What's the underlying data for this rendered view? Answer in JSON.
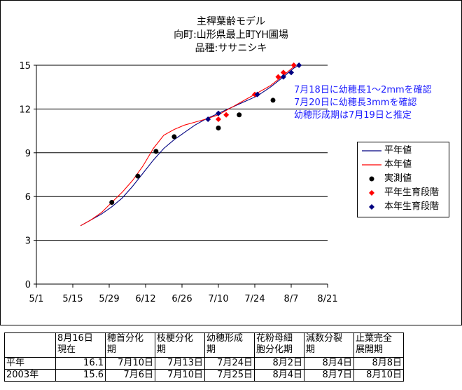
{
  "chart_data": {
    "type": "line",
    "title": [
      "主稈葉齢モデル",
      "向町:山形県最上町YH圃場",
      "品種:ササニシキ"
    ],
    "x_ticks": [
      "5/1",
      "5/15",
      "5/29",
      "6/12",
      "6/26",
      "7/10",
      "7/24",
      "8/7",
      "8/21"
    ],
    "y_ticks": [
      "0",
      "3",
      "6",
      "9",
      "12",
      "15"
    ],
    "ylim": [
      0,
      15
    ],
    "xlim": [
      "5/1",
      "8/21"
    ],
    "grid": "horizontal",
    "legend_position": "right",
    "series": [
      {
        "name": "平年値",
        "kind": "line",
        "color": "#000080",
        "points": [
          [
            "5/18",
            4.0
          ],
          [
            "5/22",
            4.4
          ],
          [
            "5/26",
            4.8
          ],
          [
            "5/30",
            5.3
          ],
          [
            "6/3",
            5.9
          ],
          [
            "6/7",
            6.7
          ],
          [
            "6/11",
            7.6
          ],
          [
            "6/15",
            8.5
          ],
          [
            "6/19",
            9.3
          ],
          [
            "6/23",
            9.9
          ],
          [
            "6/27",
            10.4
          ],
          [
            "7/1",
            10.9
          ],
          [
            "7/5",
            11.3
          ],
          [
            "7/10",
            11.7
          ],
          [
            "7/15",
            12.1
          ],
          [
            "7/20",
            12.5
          ],
          [
            "7/25",
            12.9
          ],
          [
            "7/30",
            13.5
          ],
          [
            "8/4",
            14.2
          ],
          [
            "8/8",
            14.8
          ],
          [
            "8/10",
            15.0
          ]
        ]
      },
      {
        "name": "本年値",
        "kind": "line",
        "color": "#ff0000",
        "points": [
          [
            "5/18",
            4.0
          ],
          [
            "5/22",
            4.4
          ],
          [
            "5/26",
            4.9
          ],
          [
            "5/30",
            5.6
          ],
          [
            "6/3",
            6.3
          ],
          [
            "6/7",
            7.1
          ],
          [
            "6/11",
            8.1
          ],
          [
            "6/15",
            9.3
          ],
          [
            "6/19",
            10.2
          ],
          [
            "6/23",
            10.6
          ],
          [
            "6/27",
            10.9
          ],
          [
            "7/1",
            11.1
          ],
          [
            "7/5",
            11.3
          ],
          [
            "7/10",
            11.6
          ],
          [
            "7/15",
            12.1
          ],
          [
            "7/20",
            12.6
          ],
          [
            "7/25",
            13.1
          ],
          [
            "7/30",
            13.6
          ],
          [
            "8/4",
            14.3
          ],
          [
            "8/8",
            14.9
          ],
          [
            "8/9",
            15.0
          ]
        ]
      },
      {
        "name": "実測値",
        "kind": "marker-circle",
        "color": "#000000",
        "points": [
          [
            "5/30",
            5.6
          ],
          [
            "6/9",
            7.4
          ],
          [
            "6/16",
            9.1
          ],
          [
            "6/23",
            10.1
          ],
          [
            "7/10",
            10.7
          ],
          [
            "7/18",
            11.6
          ],
          [
            "7/31",
            12.6
          ]
        ]
      },
      {
        "name": "平年生育段階",
        "kind": "marker-diamond",
        "color": "#ff0000",
        "points": [
          [
            "7/10",
            11.3
          ],
          [
            "7/13",
            11.6
          ],
          [
            "7/24",
            13.0
          ],
          [
            "8/2",
            14.2
          ],
          [
            "8/4",
            14.5
          ],
          [
            "8/8",
            15.0
          ]
        ]
      },
      {
        "name": "本年生育段階",
        "kind": "marker-diamond",
        "color": "#000080",
        "points": [
          [
            "7/6",
            11.3
          ],
          [
            "7/10",
            11.7
          ],
          [
            "7/25",
            13.0
          ],
          [
            "8/4",
            14.2
          ],
          [
            "8/7",
            14.5
          ],
          [
            "8/10",
            15.0
          ]
        ]
      }
    ],
    "annotation": [
      "7月18日に幼穂長1～2mmを確認",
      "7月20日に幼穂長3mmを確認",
      "幼穂形成期は7月19日と推定"
    ]
  },
  "table": {
    "headers": [
      [
        "",
        ""
      ],
      [
        "8月16日",
        "現在"
      ],
      [
        "穂首分化",
        "期"
      ],
      [
        "枝梗分化",
        "期"
      ],
      [
        "幼穂形成",
        "期"
      ],
      [
        "花粉母細",
        "胞分化期"
      ],
      [
        "減数分裂",
        "期"
      ],
      [
        "止葉完全",
        "展開期"
      ]
    ],
    "rows": [
      [
        "平年",
        "16.1",
        "7月10日",
        "7月13日",
        "7月24日",
        "8月2日",
        "8月4日",
        "8月8日"
      ],
      [
        "2003年",
        "15.6",
        "7月6日",
        "7月10日",
        "7月25日",
        "8月4日",
        "8月7日",
        "8月10日"
      ]
    ]
  }
}
